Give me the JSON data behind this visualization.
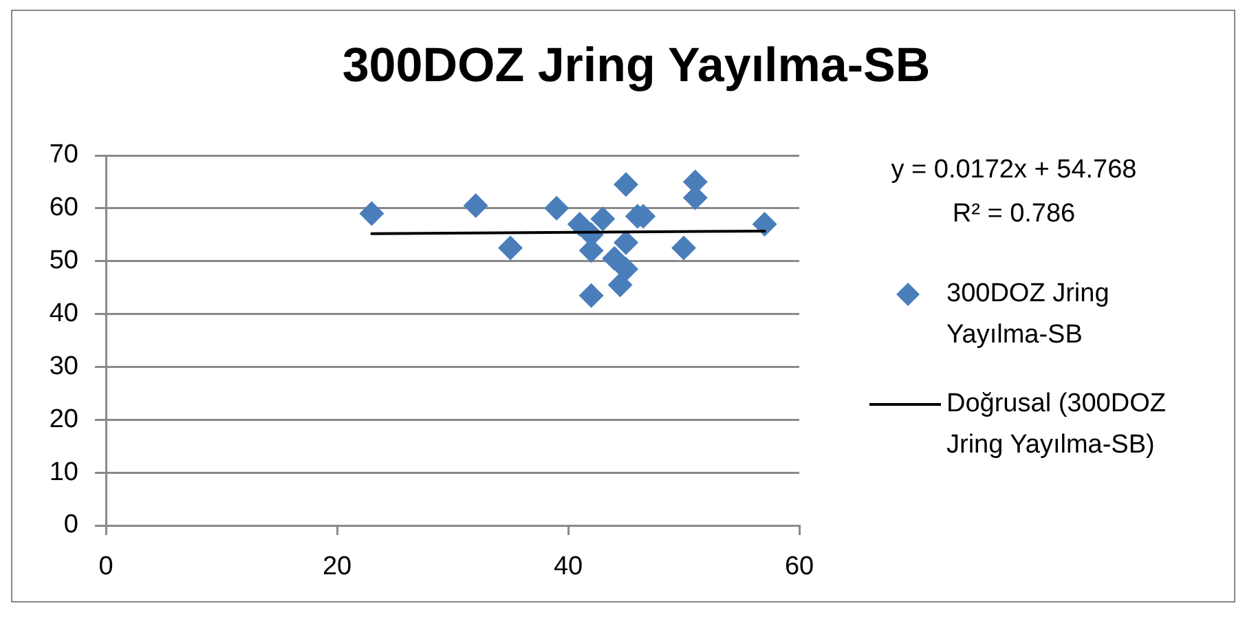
{
  "chart_data": {
    "type": "scatter",
    "title": "300DOZ Jring Yayılma-SB",
    "annotations": [
      "y = 0.0172x + 54.768",
      "R² = 0.786"
    ],
    "xlim": [
      0,
      60
    ],
    "xticks": [
      0,
      20,
      40,
      60
    ],
    "ylim": [
      0,
      70
    ],
    "yticks": [
      0,
      10,
      20,
      30,
      40,
      50,
      60,
      70
    ],
    "grid": "y",
    "legend": "right",
    "line_style": "solid",
    "series": [
      {
        "name": "300DOZ Jring Yayılma-SB",
        "color": "#4a7ebb",
        "marker": "diamond",
        "x": [
          23,
          32,
          39,
          35,
          41,
          42,
          42,
          42,
          43,
          45,
          46,
          46.5,
          45,
          44,
          45,
          44.5,
          51,
          51,
          50,
          57
        ],
        "values": [
          59,
          60.5,
          60,
          52.5,
          57,
          55,
          52,
          43.5,
          58,
          64.5,
          58.5,
          58.5,
          53.5,
          50.5,
          48.5,
          45.5,
          65,
          62,
          52.5,
          57
        ]
      },
      {
        "name": "Doğrusal (300DOZ Jring Yayılma-SB)",
        "type": "line",
        "color": "#000000",
        "marker": "none",
        "x": [
          23,
          57
        ],
        "values": [
          55.2,
          55.7
        ]
      }
    ]
  }
}
